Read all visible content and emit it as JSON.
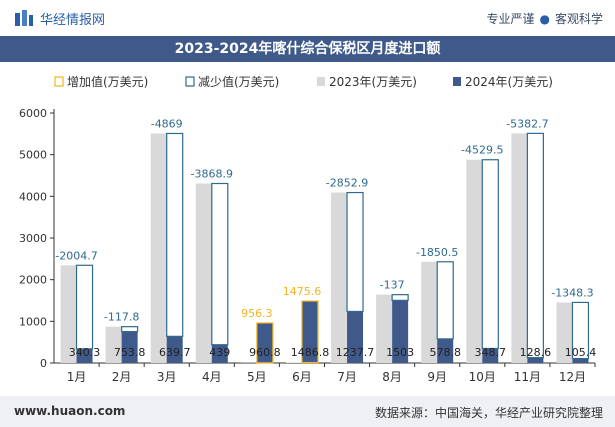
{
  "header": {
    "brand": "华经情报网",
    "tagline_left": "专业严谨",
    "tagline_right": "客观科学"
  },
  "footer": {
    "site": "www.huaon.com",
    "source": "数据来源：中国海关，华经产业研究院整理"
  },
  "colors": {
    "title_bar": "#3f5a8a",
    "bar_2023": "#d9d9d9",
    "bar_2024": "#3f5a8a",
    "increase_box": "#f2b51d",
    "decrease_box": "#2f6a8f",
    "label_increase": "#f2b51d",
    "label_decrease": "#2f6a8f"
  },
  "chart_data": {
    "type": "bar",
    "title": "2023-2024年喀什综合保税区月度进口额",
    "legend_position": "top",
    "legend": {
      "increase": "增加值(万美元)",
      "decrease": "减少值(万美元)",
      "y2023": "2023年(万美元)",
      "y2024": "2024年(万美元)"
    },
    "categories": [
      "1月",
      "2月",
      "3月",
      "4月",
      "5月",
      "6月",
      "7月",
      "8月",
      "9月",
      "10月",
      "11月",
      "12月"
    ],
    "series": [
      {
        "name": "2023年(万美元)",
        "values": [
          2345.0,
          871.6,
          5508.7,
          4307.9,
          4.5,
          11.2,
          4090.6,
          1640.0,
          2429.3,
          4878.2,
          5511.3,
          1453.7
        ]
      },
      {
        "name": "2024年(万美元)",
        "values": [
          340.3,
          753.8,
          639.7,
          439,
          960.8,
          1486.8,
          1237.7,
          1503,
          578.8,
          348.7,
          128.6,
          105.4
        ]
      }
    ],
    "change_labels": [
      "-2004.7",
      "-117.8",
      "-4869",
      "-3868.9",
      "956.3",
      "1475.6",
      "-2852.9",
      "-137",
      "-1850.5",
      "-4529.5",
      "-5382.7",
      "-1348.3"
    ],
    "value_labels": [
      "340.3",
      "753.8",
      "639.7",
      "439",
      "960.8",
      "1486.8",
      "1237.7",
      "1503",
      "578.8",
      "348.7",
      "128.6",
      "105.4"
    ],
    "ylim": [
      0,
      6000
    ],
    "yticks": [
      "0",
      "1000",
      "2000",
      "3000",
      "4000",
      "5000",
      "6000"
    ],
    "xlabel": "",
    "ylabel": "",
    "grid": false
  }
}
